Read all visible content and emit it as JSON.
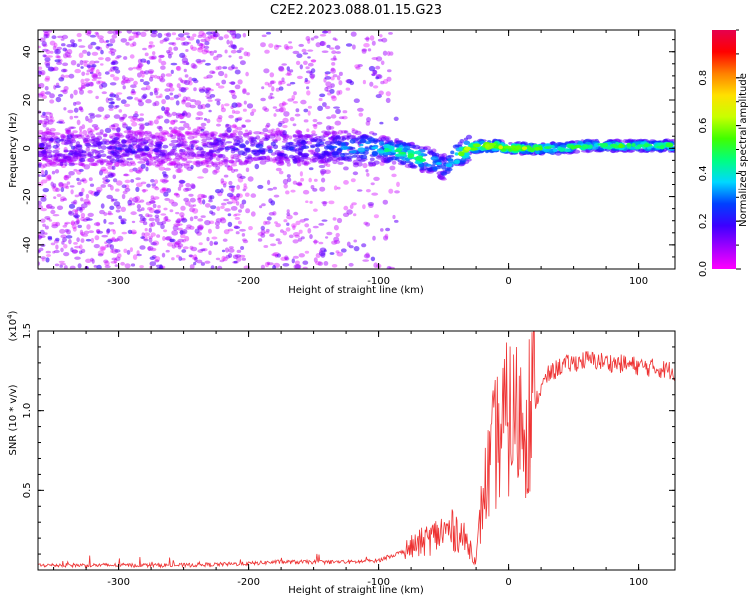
{
  "title": "C2E2.2023.088.01.15.G23",
  "chart_data": [
    {
      "type": "heatmap",
      "title": "C2E2.2023.088.01.15.G23",
      "xlabel": "Height of straight line (km)",
      "ylabel": "Frequency (Hz)",
      "xlim": [
        -362,
        128
      ],
      "ylim": [
        -50,
        49
      ],
      "x_ticks": [
        -300,
        -200,
        -100,
        0,
        100
      ],
      "y_ticks": [
        -40,
        -20,
        0,
        20,
        40
      ],
      "colorbar": {
        "label": "Normalized spectral amplitude",
        "range": [
          0.0,
          1.0
        ],
        "ticks": [
          0.0,
          0.2,
          0.4,
          0.6,
          0.8
        ],
        "colormap": [
          "#ff00ff",
          "#a000ff",
          "#3c00ff",
          "#0040ff",
          "#00d8ff",
          "#00ff80",
          "#40ff00",
          "#c8ff00",
          "#ffe000",
          "#ff8000",
          "#ff0000",
          "#e6004e"
        ]
      },
      "ridge": {
        "x": [
          -362,
          -300,
          -250,
          -210,
          -150,
          -100,
          -80,
          -70,
          -60,
          -50,
          -40,
          -30,
          -20,
          -10,
          0,
          20,
          40,
          60,
          80,
          100,
          128
        ],
        "y": [
          0,
          0,
          0,
          0,
          0,
          0,
          -2,
          -4,
          -5,
          -8,
          -3,
          0,
          1,
          1,
          0,
          0,
          0,
          1,
          1,
          1,
          1
        ],
        "amplitude": [
          0.15,
          0.18,
          0.12,
          0.18,
          0.2,
          0.35,
          0.4,
          0.45,
          0.35,
          0.3,
          0.45,
          0.55,
          0.6,
          0.55,
          0.55,
          0.5,
          0.45,
          0.45,
          0.45,
          0.45,
          0.45
        ]
      }
    },
    {
      "type": "line",
      "xlabel": "Height of straight line (km)",
      "ylabel": "SNR (10 * v/v)",
      "y_multiplier": "(x10",
      "y_multiplier_exp": "4",
      "xlim": [
        -362,
        128
      ],
      "ylim": [
        0,
        1.5
      ],
      "x_ticks": [
        -300,
        -200,
        -100,
        0,
        100
      ],
      "y_ticks": [
        0.5,
        1.0,
        1.5
      ],
      "y_tick_labels": [
        "0.5",
        "1.0",
        "1.5"
      ],
      "series": [
        {
          "color": "#ee3333",
          "envelope": {
            "x": [
              -362,
              -300,
              -250,
              -200,
              -180,
              -150,
              -120,
              -100,
              -80,
              -60,
              -50,
              -40,
              -30,
              -25,
              -20,
              -10,
              0,
              10,
              20,
              30,
              40,
              60,
              80,
              100,
              128
            ],
            "y": [
              0.03,
              0.03,
              0.03,
              0.04,
              0.05,
              0.05,
              0.05,
              0.06,
              0.12,
              0.2,
              0.24,
              0.25,
              0.15,
              0.05,
              0.45,
              0.8,
              0.95,
              0.95,
              1.05,
              1.22,
              1.28,
              1.32,
              1.3,
              1.28,
              1.25
            ]
          }
        }
      ]
    }
  ]
}
